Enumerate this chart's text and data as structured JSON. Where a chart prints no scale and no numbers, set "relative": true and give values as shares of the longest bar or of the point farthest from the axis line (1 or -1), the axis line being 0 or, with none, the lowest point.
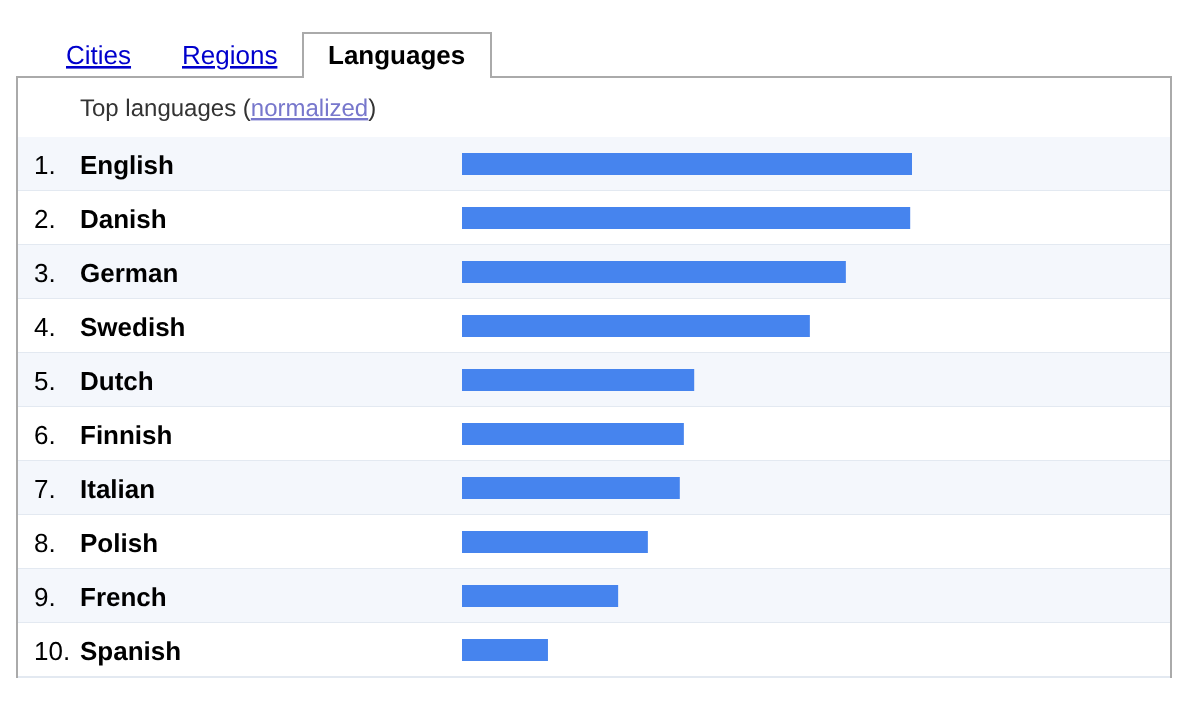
{
  "chart_data": {
    "type": "bar",
    "orientation": "horizontal",
    "relative": true,
    "title": "Languages",
    "subtitle": "Top languages (normalized)",
    "annotations": [
      "Cities",
      "Regions"
    ],
    "categories": [
      "1. English",
      "2. Danish",
      "3. German",
      "4. Swedish",
      "5. Dutch",
      "6. Finnish",
      "7. Italian",
      "8. Polish",
      "9. French",
      "10. Spanish"
    ],
    "values": [
      1,
      0.996,
      0.853,
      0.773,
      0.516,
      0.493,
      0.484,
      0.413,
      0.347,
      0.191
    ],
    "color": "#4684ee"
  }
}
